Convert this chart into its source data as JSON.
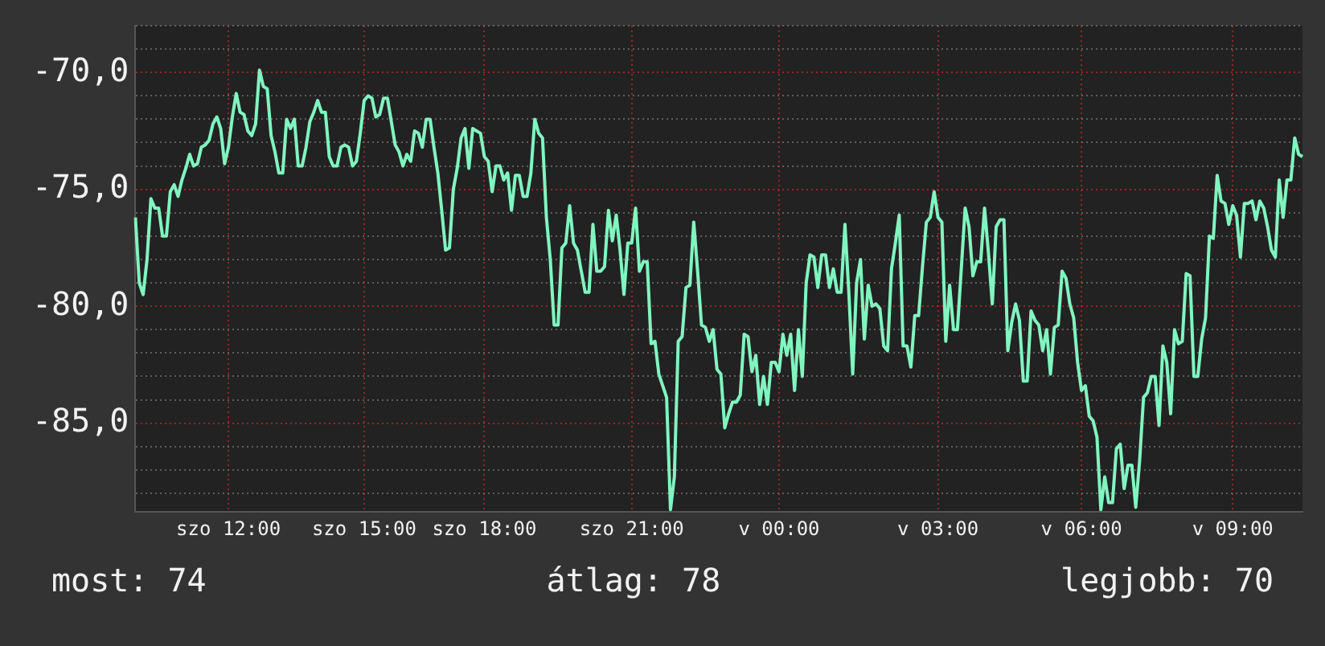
{
  "chart_data": {
    "type": "line",
    "color": "#80f5c0",
    "grid": true,
    "legend": false,
    "marker": "none",
    "line_style": "solid",
    "ylim": [
      -88.8,
      -68
    ],
    "categories": [
      null,
      null,
      null,
      null,
      null,
      null,
      null,
      null,
      null,
      null,
      null,
      null,
      null,
      null,
      null,
      null,
      null,
      null,
      null,
      null,
      null,
      null,
      null,
      null,
      "szo 12:00",
      null,
      null,
      null,
      null,
      null,
      null,
      null,
      null,
      null,
      null,
      null,
      null,
      null,
      null,
      null,
      null,
      null,
      null,
      null,
      null,
      null,
      null,
      null,
      null,
      null,
      null,
      null,
      null,
      null,
      null,
      null,
      null,
      null,
      null,
      "szo 15:00",
      null,
      null,
      null,
      null,
      null,
      null,
      null,
      null,
      null,
      null,
      null,
      null,
      null,
      null,
      null,
      null,
      null,
      null,
      null,
      null,
      null,
      null,
      null,
      null,
      null,
      null,
      null,
      null,
      null,
      null,
      "szo 18:00",
      null,
      null,
      null,
      null,
      null,
      null,
      null,
      null,
      null,
      null,
      null,
      null,
      null,
      null,
      null,
      null,
      null,
      null,
      null,
      null,
      null,
      null,
      null,
      null,
      null,
      null,
      null,
      null,
      null,
      null,
      null,
      null,
      null,
      null,
      null,
      null,
      null,
      "szo 21:00",
      null,
      null,
      null,
      null,
      null,
      null,
      null,
      null,
      null,
      null,
      null,
      null,
      null,
      null,
      null,
      null,
      null,
      null,
      null,
      null,
      null,
      null,
      null,
      null,
      null,
      null,
      null,
      null,
      null,
      null,
      null,
      null,
      null,
      null,
      null,
      null,
      null,
      "v 00:00",
      null,
      null,
      null,
      null,
      null,
      null,
      null,
      null,
      null,
      null,
      null,
      null,
      null,
      null,
      null,
      null,
      null,
      null,
      null,
      null,
      null,
      null,
      null,
      null,
      null,
      null,
      null,
      null,
      null,
      null,
      null,
      null,
      null,
      null,
      null,
      null,
      null,
      null,
      null,
      null,
      "v 03:00",
      null,
      null,
      null,
      null,
      null,
      null,
      null,
      null,
      null,
      null,
      null,
      null,
      null,
      null,
      null,
      null,
      null,
      null,
      null,
      null,
      null,
      null,
      null,
      null,
      null,
      null,
      null,
      null,
      null,
      null,
      null,
      null,
      null,
      null,
      null,
      null,
      "v 06:00",
      null,
      null,
      null,
      null,
      null,
      null,
      null,
      null,
      null,
      null,
      null,
      null,
      null,
      null,
      null,
      null,
      null,
      null,
      null,
      null,
      null,
      null,
      null,
      null,
      null,
      null,
      null,
      null,
      null,
      null,
      null,
      null,
      null,
      null,
      null,
      null,
      null,
      null,
      "v 09:00",
      null,
      null,
      null,
      null,
      null,
      null,
      null,
      null,
      null,
      null,
      null,
      null,
      null,
      null,
      null,
      null,
      null,
      null
    ],
    "yticks": [
      {
        "value": -88,
        "label": null
      },
      {
        "value": -87,
        "label": null
      },
      {
        "value": -86,
        "label": null
      },
      {
        "value": -85,
        "label": "-85,0"
      },
      {
        "value": -84,
        "label": null
      },
      {
        "value": -83,
        "label": null
      },
      {
        "value": -82,
        "label": null
      },
      {
        "value": -81,
        "label": null
      },
      {
        "value": -80,
        "label": "-80,0"
      },
      {
        "value": -79,
        "label": null
      },
      {
        "value": -78,
        "label": null
      },
      {
        "value": -77,
        "label": null
      },
      {
        "value": -76,
        "label": null
      },
      {
        "value": -75,
        "label": "-75,0"
      },
      {
        "value": -74,
        "label": null
      },
      {
        "value": -73,
        "label": null
      },
      {
        "value": -72,
        "label": null
      },
      {
        "value": -71,
        "label": null
      },
      {
        "value": -70,
        "label": "-70,0"
      },
      {
        "value": -69,
        "label": null
      },
      {
        "value": -68,
        "label": null
      }
    ],
    "annotations": [
      "most: 74",
      "átlag: 78",
      "legjobb: 70"
    ],
    "values": [
      -76.2,
      -79,
      -79.5,
      -78,
      -75.4,
      -75.8,
      -75.8,
      -77,
      -77,
      -75.1,
      -74.8,
      -75.3,
      -74.6,
      -74.1,
      -73.5,
      -74,
      -73.9,
      -73.2,
      -73.1,
      -72.9,
      -72.2,
      -71.9,
      -72.4,
      -73.9,
      -73.2,
      -71.9,
      -70.9,
      -71.7,
      -71.8,
      -72.5,
      -72.7,
      -72.2,
      -69.9,
      -70.6,
      -70.7,
      -72.7,
      -73.4,
      -74.3,
      -74.3,
      -72,
      -72.4,
      -72,
      -74,
      -74,
      -73.2,
      -72.1,
      -71.7,
      -71.2,
      -71.7,
      -71.7,
      -73.6,
      -74,
      -74,
      -73.2,
      -73.1,
      -73.2,
      -74,
      -73.8,
      -72.6,
      -71.2,
      -71,
      -71.1,
      -71.9,
      -71.8,
      -71.1,
      -71.1,
      -72.1,
      -73.1,
      -73.4,
      -74,
      -73.5,
      -73.8,
      -72.5,
      -72.6,
      -73.2,
      -72,
      -72,
      -73.2,
      -74.3,
      -75.9,
      -77.6,
      -77.5,
      -75,
      -74.1,
      -72.8,
      -72.4,
      -74.1,
      -72.4,
      -72.5,
      -72.6,
      -73.6,
      -73.8,
      -75.1,
      -74,
      -74,
      -74.6,
      -74.3,
      -75.9,
      -74.4,
      -74.4,
      -75.3,
      -75.3,
      -74.3,
      -72,
      -72.6,
      -72.8,
      -76.2,
      -78,
      -80.8,
      -80.8,
      -77.5,
      -77.3,
      -75.7,
      -77.3,
      -77.6,
      -78.5,
      -79.4,
      -79.4,
      -76.5,
      -78.5,
      -78.5,
      -78.3,
      -75.9,
      -77.2,
      -76.1,
      -77.6,
      -79.5,
      -77.3,
      -77.3,
      -75.8,
      -78.5,
      -78.1,
      -78.1,
      -81.6,
      -81.5,
      -82.9,
      -83.4,
      -83.9,
      -88.7,
      -87.3,
      -81.5,
      -81.3,
      -79.2,
      -79.1,
      -76.4,
      -78.5,
      -80.8,
      -80.9,
      -81.5,
      -81,
      -82.7,
      -82.9,
      -85.2,
      -84.6,
      -84.1,
      -84.1,
      -83.8,
      -81.2,
      -81.3,
      -82.8,
      -82.1,
      -84.2,
      -83,
      -84.2,
      -82.4,
      -82.4,
      -82.8,
      -81.2,
      -82.1,
      -81.2,
      -83.6,
      -81,
      -83,
      -79,
      -77.8,
      -77.9,
      -79.2,
      -77.8,
      -77.8,
      -79.2,
      -78.4,
      -79.4,
      -79.4,
      -76.5,
      -79.4,
      -82.9,
      -79,
      -78,
      -81.4,
      -79.1,
      -80,
      -79.9,
      -80.1,
      -81.7,
      -81.9,
      -78.4,
      -77.3,
      -76.1,
      -81.7,
      -81.7,
      -82.6,
      -80.4,
      -80.4,
      -78.3,
      -76.4,
      -76.2,
      -75.1,
      -76.2,
      -76.4,
      -81.5,
      -79.1,
      -81,
      -81,
      -78.4,
      -75.8,
      -76.6,
      -78.7,
      -78.1,
      -78.1,
      -75.8,
      -77.7,
      -79.9,
      -76.6,
      -76.3,
      -76.3,
      -81.9,
      -80.7,
      -79.9,
      -80.6,
      -83.2,
      -83.2,
      -80.2,
      -80.6,
      -80.8,
      -81.9,
      -81,
      -82.9,
      -80.9,
      -80.8,
      -78.5,
      -78.8,
      -79.9,
      -80.5,
      -82.4,
      -83.6,
      -83.4,
      -84.7,
      -84.9,
      -85.6,
      -88.7,
      -87.3,
      -88.4,
      -88.4,
      -86.1,
      -85.9,
      -87.8,
      -86.8,
      -86.8,
      -88.6,
      -86.6,
      -83.9,
      -83.7,
      -83,
      -83,
      -85.1,
      -81.7,
      -82.4,
      -84.6,
      -81,
      -81.6,
      -81.5,
      -78.6,
      -78.7,
      -83,
      -83,
      -81.4,
      -80.5,
      -77,
      -77.1,
      -74.4,
      -75.5,
      -75.6,
      -76.5,
      -75.7,
      -76.1,
      -77.9,
      -75.6,
      -75.6,
      -75.5,
      -76.3,
      -75.5,
      -75.8,
      -76.6,
      -77.6,
      -77.9,
      -74.6,
      -76.2,
      -74.6,
      -74.6,
      -72.8,
      -73.5,
      -73.6
    ]
  }
}
